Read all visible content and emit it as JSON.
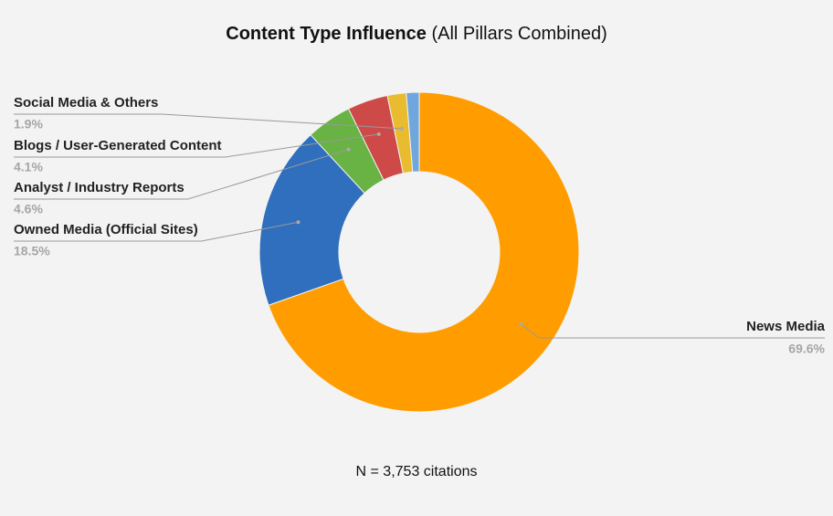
{
  "chart_data": {
    "type": "donut",
    "title": "Content Type Influence",
    "subtitle": "(All Pillars Combined)",
    "categories": [
      "News Media",
      "Owned Media (Official Sites)",
      "Analyst / Industry Reports",
      "Blogs / User-Generated Content",
      "Social Media & Others",
      null
    ],
    "values": [
      69.6,
      18.5,
      4.6,
      4.1,
      1.9,
      1.3
    ],
    "value_labels": [
      "69.6%",
      "18.5%",
      "4.6%",
      "4.1%",
      "1.9%",
      null
    ],
    "colors": [
      "#ff9d00",
      "#2f6fbd",
      "#69b244",
      "#cd4a48",
      "#e9bb2f",
      "#6fa6dd"
    ],
    "footnote": "N = 3,753 citations"
  }
}
